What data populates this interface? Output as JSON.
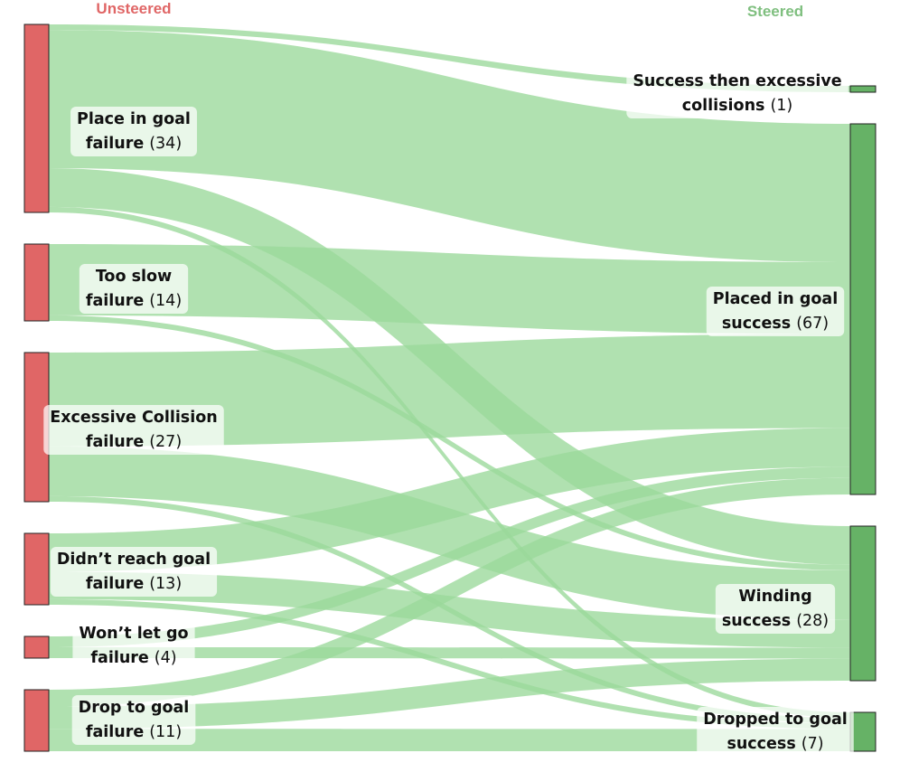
{
  "colors": {
    "source_node": "#e06666",
    "target_node": "#66b266",
    "link": "#9ad99a",
    "source_title": "#e06666",
    "target_title": "#7fbf7f"
  },
  "columns": {
    "left_title": "Unsteered",
    "right_title": "Steered"
  },
  "sources": [
    {
      "id": "place",
      "line1": "Place in goal",
      "line2": "failure",
      "count_text": "(34)",
      "value": 34
    },
    {
      "id": "slow",
      "line1": "Too slow",
      "line2": "failure",
      "count_text": "(14)",
      "value": 14
    },
    {
      "id": "collision",
      "line1": "Excessive Collision",
      "line2": "failure",
      "count_text": "(27)",
      "value": 27
    },
    {
      "id": "reach",
      "line1": "Didn’t reach goal",
      "line2": "failure",
      "count_text": "(13)",
      "value": 13
    },
    {
      "id": "letgo",
      "line1": "Won’t let go",
      "line2": "failure",
      "count_text": "(4)",
      "value": 4
    },
    {
      "id": "drop",
      "line1": "Drop to goal",
      "line2": "failure",
      "count_text": "(11)",
      "value": 11
    }
  ],
  "targets": [
    {
      "id": "s_collide",
      "line1": "Success then excessive",
      "line2": "collisions",
      "count_text": "(1)",
      "value": 1
    },
    {
      "id": "s_placed",
      "line1": "Placed in goal",
      "line2": "success",
      "count_text": "(67)",
      "value": 67
    },
    {
      "id": "s_winding",
      "line1": "Winding",
      "line2": "success",
      "count_text": "(28)",
      "value": 28
    },
    {
      "id": "s_dropped",
      "line1": "Dropped to goal",
      "line2": "success",
      "count_text": "(7)",
      "value": 7
    }
  ],
  "flows": [
    {
      "from": "place",
      "to": "s_collide",
      "value": 1
    },
    {
      "from": "place",
      "to": "s_placed",
      "value": 25
    },
    {
      "from": "place",
      "to": "s_winding",
      "value": 7
    },
    {
      "from": "place",
      "to": "s_dropped",
      "value": 1
    },
    {
      "from": "slow",
      "to": "s_placed",
      "value": 13
    },
    {
      "from": "slow",
      "to": "s_winding",
      "value": 1
    },
    {
      "from": "collision",
      "to": "s_placed",
      "value": 17
    },
    {
      "from": "collision",
      "to": "s_winding",
      "value": 9
    },
    {
      "from": "collision",
      "to": "s_dropped",
      "value": 1
    },
    {
      "from": "reach",
      "to": "s_placed",
      "value": 7
    },
    {
      "from": "reach",
      "to": "s_winding",
      "value": 5
    },
    {
      "from": "reach",
      "to": "s_dropped",
      "value": 1
    },
    {
      "from": "letgo",
      "to": "s_placed",
      "value": 2
    },
    {
      "from": "letgo",
      "to": "s_winding",
      "value": 2
    },
    {
      "from": "drop",
      "to": "s_placed",
      "value": 3
    },
    {
      "from": "drop",
      "to": "s_winding",
      "value": 4
    },
    {
      "from": "drop",
      "to": "s_dropped",
      "value": 4
    }
  ]
}
